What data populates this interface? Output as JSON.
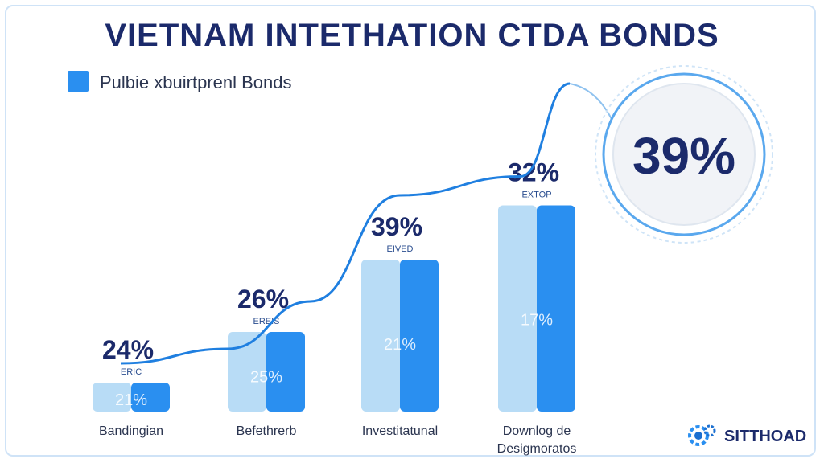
{
  "chart_data": {
    "type": "bar",
    "title": "VIETNAM INTETHATION CTDA BONDS",
    "legend": [
      "Pulbie xbuirtprenl Bonds"
    ],
    "categories": [
      "Bandingian",
      "Befethrerb",
      "Investitatunal",
      "Downlog de Desigmoratos"
    ],
    "series": [
      {
        "name": "light",
        "color": "#b8dcf6",
        "values": [
          8,
          22,
          42,
          57
        ]
      },
      {
        "name": "dark",
        "color": "#2a8ff0",
        "values": [
          8,
          22,
          42,
          57
        ]
      }
    ],
    "bar_inner_labels": [
      "21%",
      "25%",
      "21%",
      "17%"
    ],
    "top_labels": [
      "24%",
      "26%",
      "39%",
      "32%"
    ],
    "sub_labels": [
      "ERIC",
      "EREIS",
      "EIVED",
      "EXTOP"
    ],
    "trend_line": "increasing",
    "highlight": "39%",
    "ylim": [
      0,
      100
    ]
  },
  "logo": {
    "text": "SITTHOAD"
  },
  "colors": {
    "title": "#1b2a6b",
    "accent": "#2a8ff0",
    "light": "#b8dcf6"
  }
}
